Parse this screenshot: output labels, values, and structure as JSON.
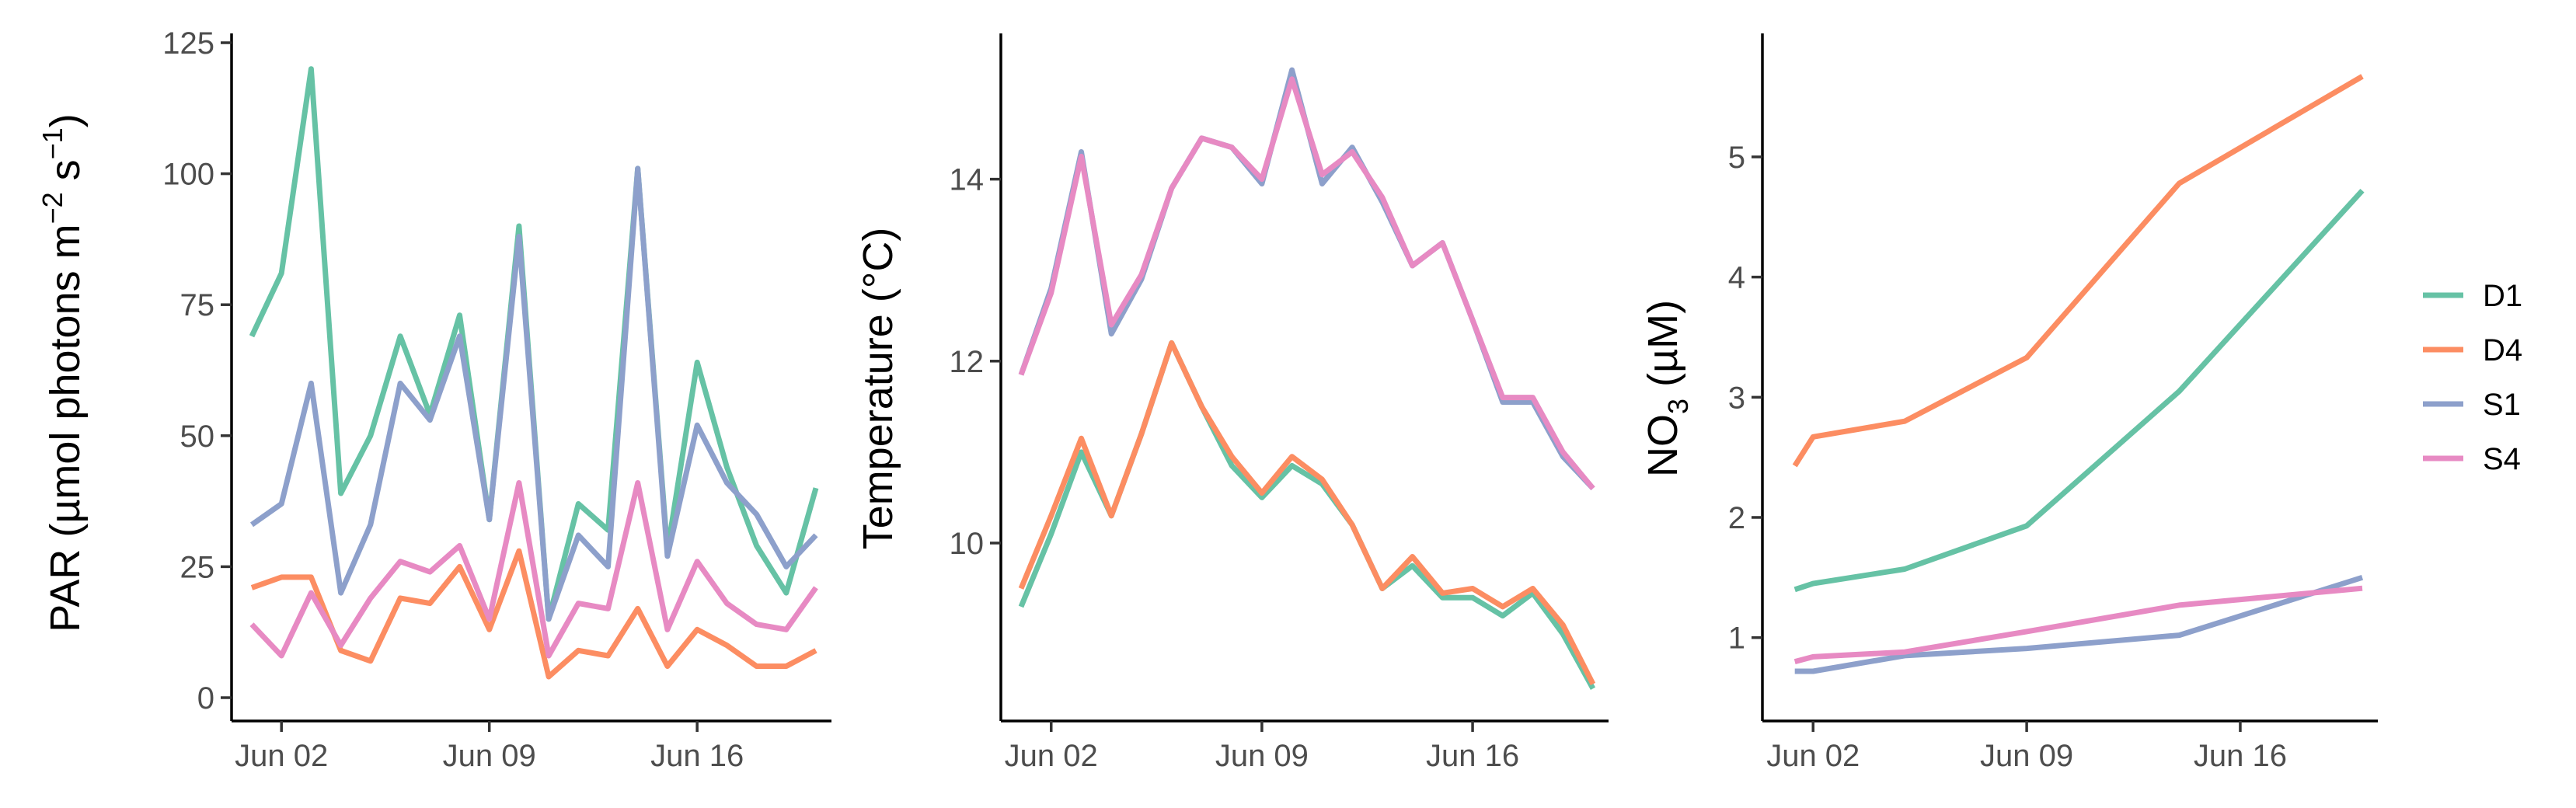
{
  "series_colors": {
    "D1": "#66c2a5",
    "D4": "#fc8d62",
    "S1": "#8da0cb",
    "S4": "#e78ac3"
  },
  "legend": {
    "items": [
      {
        "label": "D1",
        "color": "#66c2a5"
      },
      {
        "label": "D4",
        "color": "#fc8d62"
      },
      {
        "label": "S1",
        "color": "#8da0cb"
      },
      {
        "label": "S4",
        "color": "#e78ac3"
      }
    ],
    "placement": "right"
  },
  "chart_data": [
    {
      "type": "line",
      "ylabel": {
        "main": "PAR (µmol photons m",
        "sup1": "−2",
        "mid": " s",
        "sup2": "−1",
        "end": ")"
      },
      "xticks": [
        "Jun 02",
        "Jun 09",
        "Jun 16"
      ],
      "xtick_days": [
        2,
        9,
        16
      ],
      "xlim": [
        1,
        20
      ],
      "yticks": [
        "0",
        "25",
        "50",
        "75",
        "100",
        "125"
      ],
      "ytick_values": [
        0,
        25,
        50,
        75,
        100,
        125
      ],
      "ylim": [
        0,
        125
      ],
      "grid": false,
      "series": [
        {
          "name": "D1",
          "points": [
            [
              1,
              69
            ],
            [
              2,
              81
            ],
            [
              3,
              120
            ],
            [
              4,
              39
            ],
            [
              5,
              50
            ],
            [
              6,
              69
            ],
            [
              7,
              54
            ],
            [
              8,
              73
            ],
            [
              9,
              34
            ],
            [
              10,
              90
            ],
            [
              11,
              15
            ],
            [
              12,
              37
            ],
            [
              13,
              32
            ],
            [
              14,
              101
            ],
            [
              15,
              28
            ],
            [
              16,
              64
            ],
            [
              17,
              44
            ],
            [
              18,
              29
            ],
            [
              19,
              20
            ],
            [
              20,
              40
            ]
          ]
        },
        {
          "name": "D4",
          "points": [
            [
              1,
              21
            ],
            [
              2,
              23
            ],
            [
              3,
              23
            ],
            [
              4,
              9
            ],
            [
              5,
              7
            ],
            [
              6,
              19
            ],
            [
              7,
              18
            ],
            [
              8,
              25
            ],
            [
              9,
              13
            ],
            [
              10,
              28
            ],
            [
              11,
              4
            ],
            [
              12,
              9
            ],
            [
              13,
              8
            ],
            [
              14,
              17
            ],
            [
              15,
              6
            ],
            [
              16,
              13
            ],
            [
              17,
              10
            ],
            [
              18,
              6
            ],
            [
              19,
              6
            ],
            [
              20,
              9
            ]
          ]
        },
        {
          "name": "S1",
          "points": [
            [
              1,
              33
            ],
            [
              2,
              37
            ],
            [
              3,
              60
            ],
            [
              4,
              20
            ],
            [
              5,
              33
            ],
            [
              6,
              60
            ],
            [
              7,
              53
            ],
            [
              8,
              69
            ],
            [
              9,
              34
            ],
            [
              10,
              88
            ],
            [
              11,
              15
            ],
            [
              12,
              31
            ],
            [
              13,
              25
            ],
            [
              14,
              101
            ],
            [
              15,
              27
            ],
            [
              16,
              52
            ],
            [
              17,
              41
            ],
            [
              18,
              35
            ],
            [
              19,
              25
            ],
            [
              20,
              31
            ]
          ]
        },
        {
          "name": "S4",
          "points": [
            [
              1,
              14
            ],
            [
              2,
              8
            ],
            [
              3,
              20
            ],
            [
              4,
              10
            ],
            [
              5,
              19
            ],
            [
              6,
              26
            ],
            [
              7,
              24
            ],
            [
              8,
              29
            ],
            [
              9,
              15
            ],
            [
              10,
              41
            ],
            [
              11,
              8
            ],
            [
              12,
              18
            ],
            [
              13,
              17
            ],
            [
              14,
              41
            ],
            [
              15,
              13
            ],
            [
              16,
              26
            ],
            [
              17,
              18
            ],
            [
              18,
              14
            ],
            [
              19,
              13
            ],
            [
              20,
              21
            ]
          ]
        }
      ]
    },
    {
      "type": "line",
      "ylabel": {
        "main": "Temperature (°C)"
      },
      "xticks": [
        "Jun 02",
        "Jun 09",
        "Jun 16"
      ],
      "xtick_days": [
        2,
        9,
        16
      ],
      "xlim": [
        1,
        20
      ],
      "yticks": [
        "10",
        "12",
        "14"
      ],
      "ytick_values": [
        10,
        12,
        14
      ],
      "ylim": [
        8.3,
        15.5
      ],
      "grid": false,
      "series": [
        {
          "name": "D1",
          "points": [
            [
              1,
              9.3
            ],
            [
              2,
              10.1
            ],
            [
              3,
              11.0
            ],
            [
              4,
              10.3
            ],
            [
              5,
              11.2
            ],
            [
              6,
              12.2
            ],
            [
              7,
              11.5
            ],
            [
              8,
              10.85
            ],
            [
              9,
              10.5
            ],
            [
              10,
              10.85
            ],
            [
              11,
              10.65
            ],
            [
              12,
              10.2
            ],
            [
              13,
              9.5
            ],
            [
              14,
              9.75
            ],
            [
              15,
              9.4
            ],
            [
              16,
              9.4
            ],
            [
              17,
              9.2
            ],
            [
              18,
              9.45
            ],
            [
              19,
              9.0
            ],
            [
              20,
              8.4
            ]
          ]
        },
        {
          "name": "D4",
          "points": [
            [
              1,
              9.5
            ],
            [
              2,
              10.3
            ],
            [
              3,
              11.15
            ],
            [
              4,
              10.3
            ],
            [
              5,
              11.2
            ],
            [
              6,
              12.2
            ],
            [
              7,
              11.5
            ],
            [
              8,
              10.95
            ],
            [
              9,
              10.55
            ],
            [
              10,
              10.95
            ],
            [
              11,
              10.7
            ],
            [
              12,
              10.2
            ],
            [
              13,
              9.5
            ],
            [
              14,
              9.85
            ],
            [
              15,
              9.45
            ],
            [
              16,
              9.5
            ],
            [
              17,
              9.3
            ],
            [
              18,
              9.5
            ],
            [
              19,
              9.1
            ],
            [
              20,
              8.45
            ]
          ]
        },
        {
          "name": "S1",
          "points": [
            [
              1,
              11.85
            ],
            [
              2,
              12.8
            ],
            [
              3,
              14.3
            ],
            [
              4,
              12.3
            ],
            [
              5,
              12.9
            ],
            [
              6,
              13.9
            ],
            [
              7,
              14.45
            ],
            [
              8,
              14.35
            ],
            [
              9,
              13.95
            ],
            [
              10,
              15.2
            ],
            [
              11,
              13.95
            ],
            [
              12,
              14.35
            ],
            [
              13,
              13.75
            ],
            [
              14,
              13.05
            ],
            [
              15,
              13.3
            ],
            [
              16,
              12.45
            ],
            [
              17,
              11.55
            ],
            [
              18,
              11.55
            ],
            [
              19,
              10.95
            ],
            [
              20,
              10.6
            ]
          ]
        },
        {
          "name": "S4",
          "points": [
            [
              1,
              11.85
            ],
            [
              2,
              12.75
            ],
            [
              3,
              14.25
            ],
            [
              4,
              12.4
            ],
            [
              5,
              12.95
            ],
            [
              6,
              13.9
            ],
            [
              7,
              14.45
            ],
            [
              8,
              14.35
            ],
            [
              9,
              14.0
            ],
            [
              10,
              15.1
            ],
            [
              11,
              14.05
            ],
            [
              12,
              14.3
            ],
            [
              13,
              13.8
            ],
            [
              14,
              13.05
            ],
            [
              15,
              13.3
            ],
            [
              16,
              12.45
            ],
            [
              17,
              11.6
            ],
            [
              18,
              11.6
            ],
            [
              19,
              11.0
            ],
            [
              20,
              10.6
            ]
          ]
        }
      ]
    },
    {
      "type": "line",
      "ylabel": {
        "main": "NO",
        "sub": "3",
        "end": "  (µM)"
      },
      "xticks": [
        "Jun 02",
        "Jun 09",
        "Jun 16"
      ],
      "xtick_days": [
        2,
        9,
        16
      ],
      "xlim": [
        1,
        20
      ],
      "yticks": [
        "1",
        "2",
        "3",
        "4",
        "5"
      ],
      "ytick_values": [
        1,
        2,
        3,
        4,
        5
      ],
      "ylim": [
        0.5,
        5.95
      ],
      "grid": false,
      "series": [
        {
          "name": "D1",
          "points": [
            [
              1.4,
              1.4
            ],
            [
              2,
              1.45
            ],
            [
              5,
              1.57
            ],
            [
              9,
              1.93
            ],
            [
              14,
              3.05
            ],
            [
              20,
              4.72
            ]
          ]
        },
        {
          "name": "D4",
          "points": [
            [
              1.4,
              2.43
            ],
            [
              2,
              2.67
            ],
            [
              5,
              2.8
            ],
            [
              9,
              3.33
            ],
            [
              14,
              4.78
            ],
            [
              20,
              5.67
            ]
          ]
        },
        {
          "name": "S1",
          "points": [
            [
              1.4,
              0.72
            ],
            [
              2,
              0.72
            ],
            [
              5,
              0.85
            ],
            [
              9,
              0.91
            ],
            [
              14,
              1.02
            ],
            [
              20,
              1.5
            ]
          ]
        },
        {
          "name": "S4",
          "points": [
            [
              1.4,
              0.8
            ],
            [
              2,
              0.84
            ],
            [
              5,
              0.88
            ],
            [
              9,
              1.05
            ],
            [
              14,
              1.27
            ],
            [
              20,
              1.41
            ]
          ]
        }
      ]
    }
  ]
}
